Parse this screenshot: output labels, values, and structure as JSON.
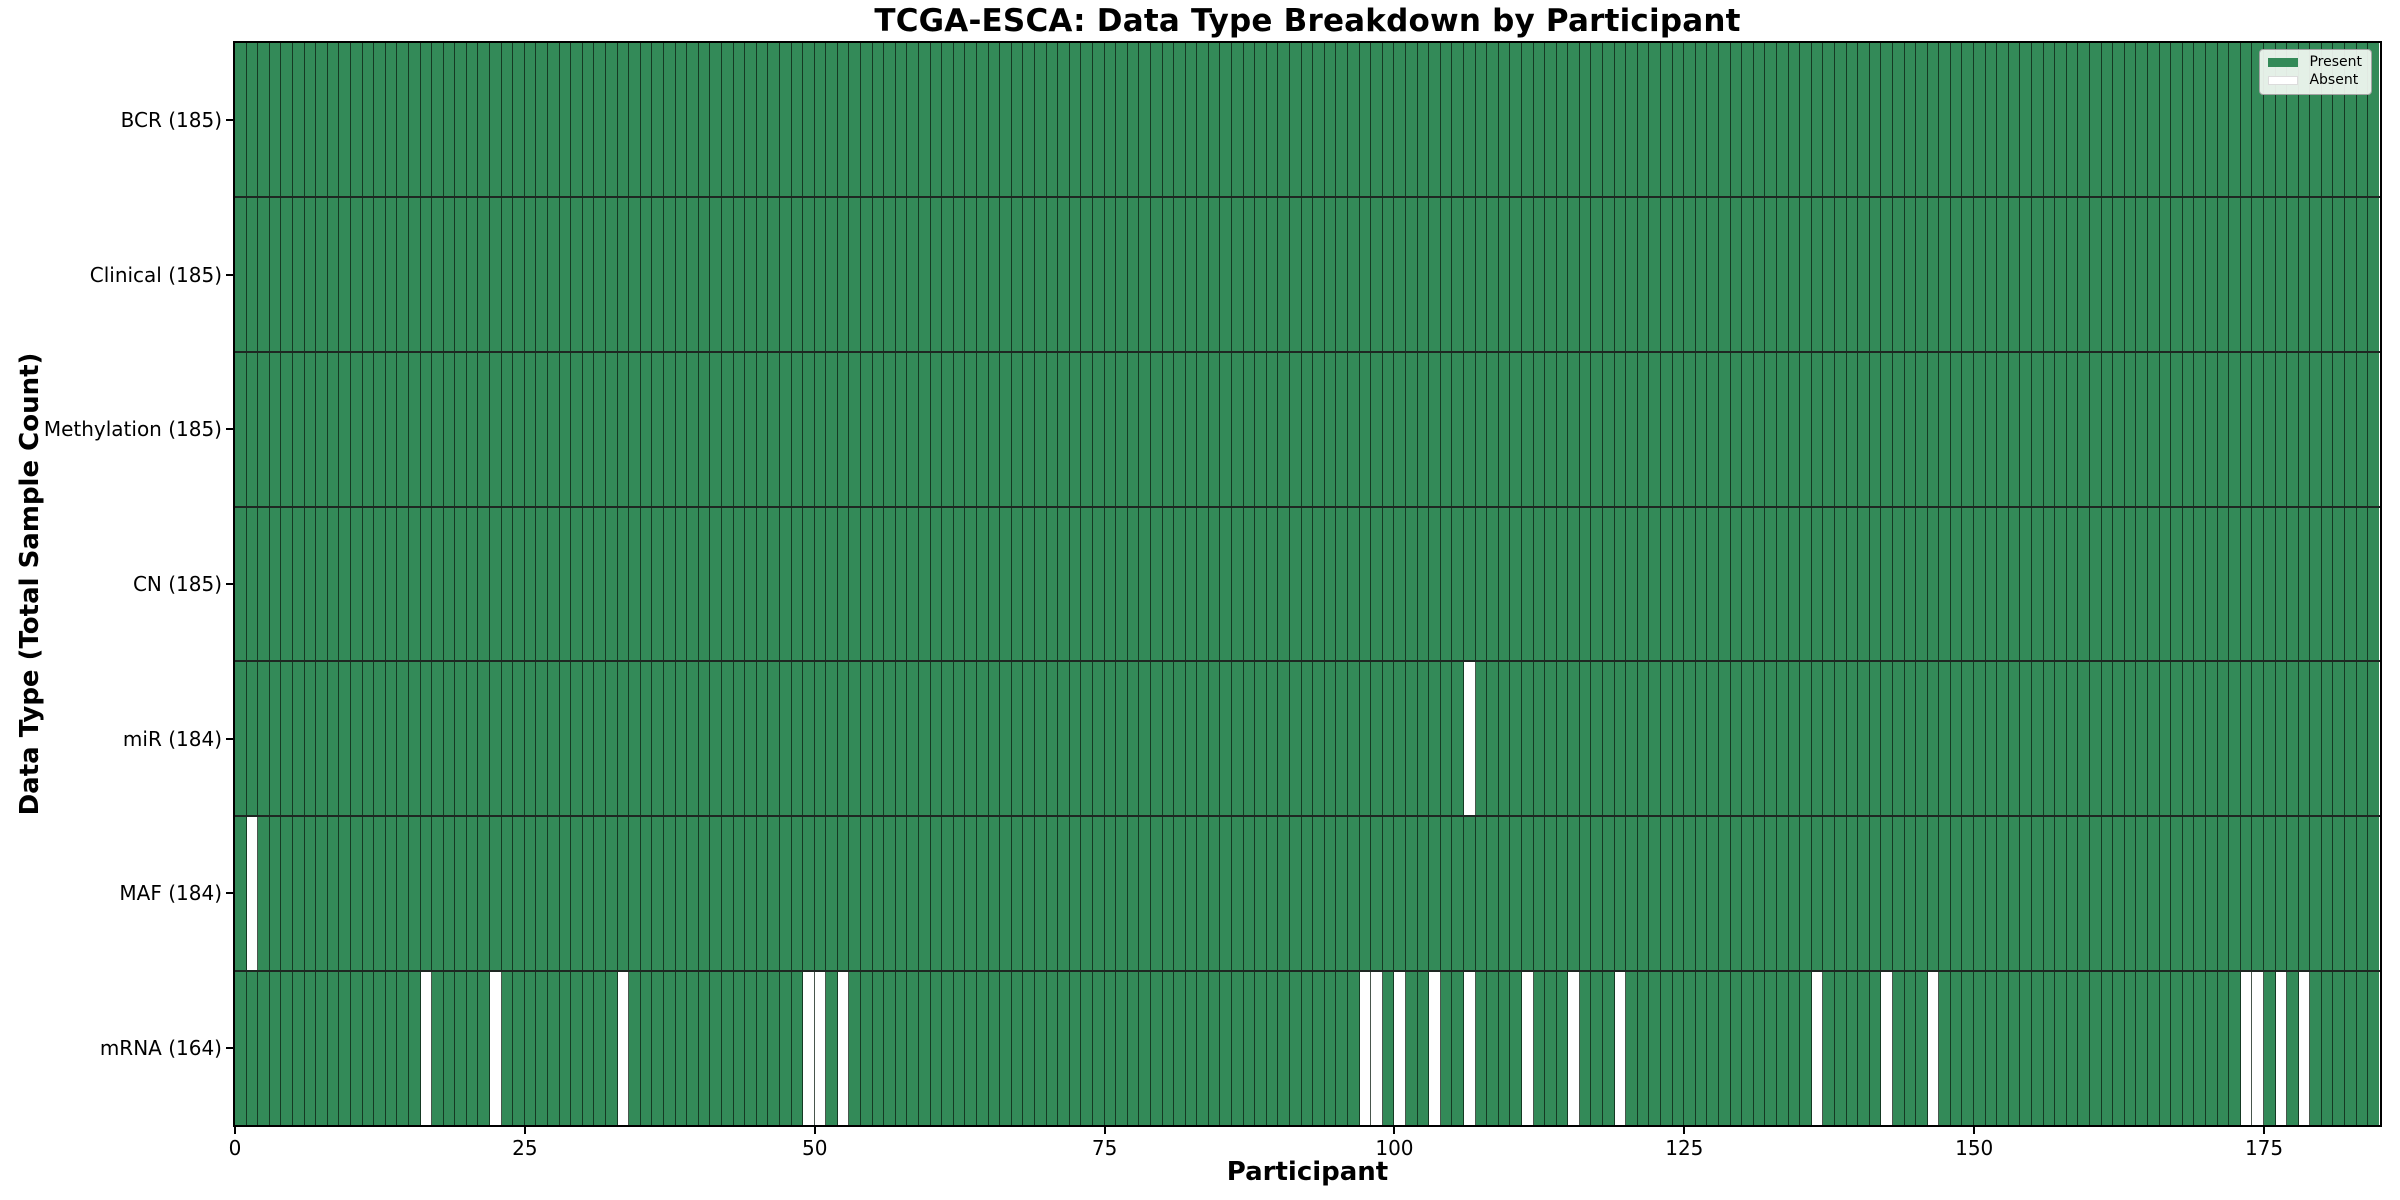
{
  "page": {
    "background": "#ffffff"
  },
  "chart": {
    "title": "TCGA-ESCA: Data Type Breakdown by Participant",
    "x_axis_label": "Participant",
    "y_axis_label": "Data Type (Total Sample Count)"
  },
  "legend": {
    "items": [
      {
        "label": "Present",
        "swatch": "present"
      },
      {
        "label": "Absent",
        "swatch": "absent"
      }
    ]
  },
  "chart_data": {
    "type": "heatmap",
    "title": "TCGA-ESCA: Data Type Breakdown by Participant",
    "xlabel": "Participant",
    "ylabel": "Data Type (Total Sample Count)",
    "legend": [
      "Present",
      "Absent"
    ],
    "legend_position": "upper right",
    "grid": true,
    "x_axis": {
      "n_participants": 185,
      "tick_values": [
        0,
        25,
        50,
        75,
        100,
        125,
        150,
        175
      ],
      "tick_labels": [
        "0",
        "25",
        "50",
        "75",
        "100",
        "125",
        "150",
        "175"
      ]
    },
    "rows": [
      {
        "key": "bcr",
        "label": "BCR (185)",
        "data_type": "BCR",
        "present_count": 185,
        "absent_participants": []
      },
      {
        "key": "clinical",
        "label": "Clinical (185)",
        "data_type": "Clinical",
        "present_count": 185,
        "absent_participants": []
      },
      {
        "key": "methylation",
        "label": "Methylation (185)",
        "data_type": "Methylation",
        "present_count": 185,
        "absent_participants": []
      },
      {
        "key": "cn",
        "label": "CN (185)",
        "data_type": "CN",
        "present_count": 185,
        "absent_participants": []
      },
      {
        "key": "mir",
        "label": "miR (184)",
        "data_type": "miR",
        "present_count": 184,
        "absent_participants": [
          106
        ]
      },
      {
        "key": "maf",
        "label": "MAF (184)",
        "data_type": "MAF",
        "present_count": 184,
        "absent_participants": [
          1
        ]
      },
      {
        "key": "mrna",
        "label": "mRNA (164)",
        "data_type": "mRNA",
        "present_count": 164,
        "absent_participants": [
          16,
          22,
          33,
          49,
          50,
          52,
          97,
          98,
          100,
          103,
          106,
          111,
          115,
          119,
          136,
          142,
          146,
          173,
          174,
          176,
          178
        ]
      }
    ],
    "colors": {
      "present": "#338a58",
      "absent": "#ffffff",
      "gridline": "rgba(12,30,18,0.75)",
      "row_divider": "rgba(5,15,10,0.9)",
      "spine": "#000000"
    }
  }
}
